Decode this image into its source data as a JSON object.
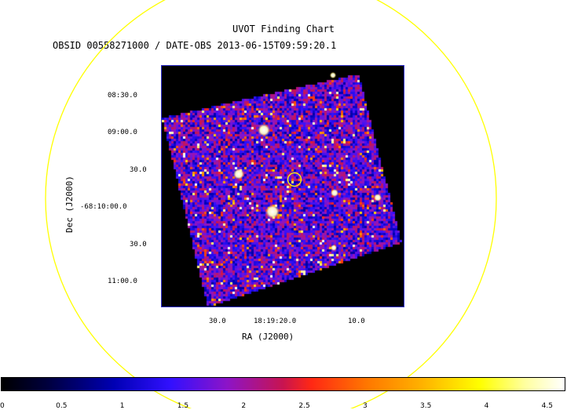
{
  "chart_data": {
    "type": "heatmap",
    "title": "UVOT Finding Chart",
    "subtitle": "OBSID 00558271000 / DATE-OBS 2013-06-15T09:59:20.1",
    "xlabel": "RA (J2000)",
    "ylabel": "Dec (J2000)",
    "x_ticks": [
      "30.0",
      "18:19:20.0",
      "10.0"
    ],
    "y_ticks": [
      "08:30.0",
      "09:00.0",
      "30.0",
      "-68:10:00.0",
      "30.0",
      "11:00.0"
    ],
    "colorbar": {
      "ticks": [
        "0",
        "0.5",
        "1",
        "1.5",
        "2",
        "2.5",
        "3",
        "3.5",
        "4",
        "4.5"
      ],
      "range": [
        0,
        4.65
      ],
      "colormap": "hot-blue"
    },
    "grid": false
  },
  "colors": {
    "circle": "#ffff00",
    "frame": "#3030d0",
    "background": "#ffffff"
  }
}
